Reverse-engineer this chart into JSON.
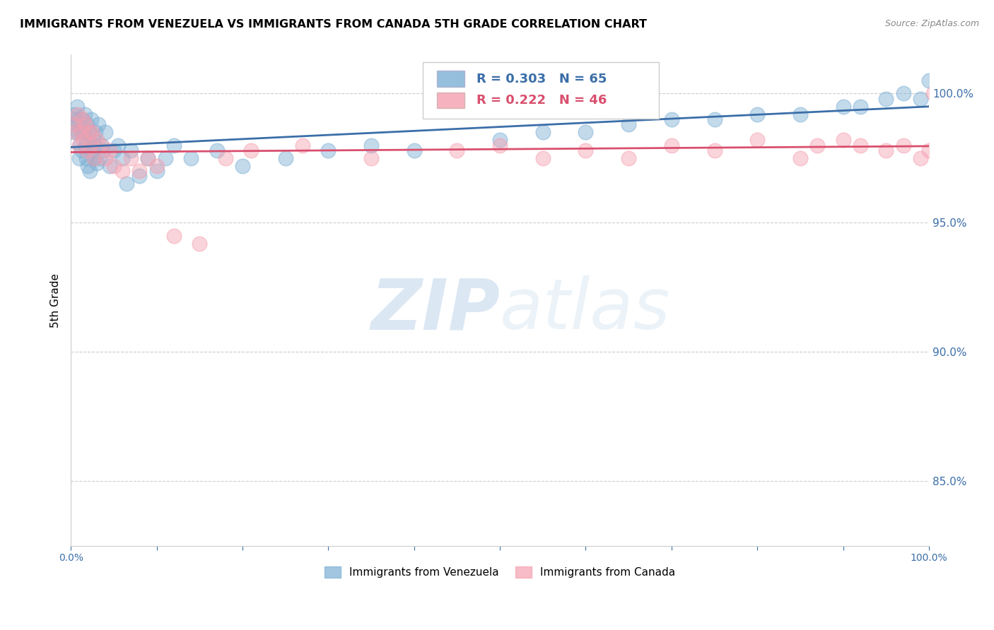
{
  "title": "IMMIGRANTS FROM VENEZUELA VS IMMIGRANTS FROM CANADA 5TH GRADE CORRELATION CHART",
  "source": "Source: ZipAtlas.com",
  "ylabel": "5th Grade",
  "legend_label_blue": "Immigrants from Venezuela",
  "legend_label_pink": "Immigrants from Canada",
  "R_blue": 0.303,
  "N_blue": 65,
  "R_pink": 0.222,
  "N_pink": 46,
  "blue_color": "#7BAFD4",
  "pink_color": "#F4A0B0",
  "blue_line_color": "#3B6EA8",
  "pink_line_color": "#D94F6E",
  "xlim": [
    0.0,
    100.0
  ],
  "ylim": [
    82.5,
    101.5
  ],
  "yticks": [
    85.0,
    90.0,
    95.0,
    100.0
  ],
  "xticks": [
    0.0,
    10.0,
    20.0,
    30.0,
    40.0,
    50.0,
    60.0,
    70.0,
    80.0,
    90.0,
    100.0
  ],
  "watermark_zip": "ZIP",
  "watermark_atlas": "atlas",
  "venezuela_x": [
    0.3,
    0.4,
    0.5,
    0.6,
    0.7,
    0.8,
    0.9,
    1.0,
    1.1,
    1.2,
    1.3,
    1.4,
    1.5,
    1.6,
    1.7,
    1.8,
    1.9,
    2.0,
    2.1,
    2.2,
    2.3,
    2.4,
    2.5,
    2.6,
    2.7,
    2.8,
    2.9,
    3.0,
    3.2,
    3.4,
    3.6,
    3.8,
    4.0,
    4.5,
    5.0,
    5.5,
    6.0,
    6.5,
    7.0,
    8.0,
    9.0,
    10.0,
    11.0,
    12.0,
    14.0,
    17.0,
    20.0,
    25.0,
    30.0,
    35.0,
    40.0,
    50.0,
    55.0,
    60.0,
    65.0,
    70.0,
    75.0,
    80.0,
    85.0,
    90.0,
    92.0,
    95.0,
    97.0,
    99.0,
    100.0
  ],
  "venezuela_y": [
    98.5,
    99.2,
    99.0,
    98.8,
    99.5,
    98.5,
    99.0,
    97.5,
    98.0,
    98.5,
    97.8,
    99.0,
    98.5,
    99.2,
    98.0,
    97.5,
    98.8,
    97.2,
    98.5,
    97.0,
    98.0,
    99.0,
    97.8,
    98.2,
    97.5,
    98.0,
    98.5,
    97.3,
    98.8,
    97.5,
    98.0,
    97.8,
    98.5,
    97.2,
    97.8,
    98.0,
    97.5,
    96.5,
    97.8,
    96.8,
    97.5,
    97.0,
    97.5,
    98.0,
    97.5,
    97.8,
    97.2,
    97.5,
    97.8,
    98.0,
    97.8,
    98.2,
    98.5,
    98.5,
    98.8,
    99.0,
    99.0,
    99.2,
    99.2,
    99.5,
    99.5,
    99.8,
    100.0,
    99.8,
    100.5
  ],
  "canada_x": [
    0.4,
    0.6,
    0.8,
    1.0,
    1.2,
    1.4,
    1.5,
    1.7,
    1.9,
    2.1,
    2.3,
    2.5,
    2.7,
    3.0,
    3.5,
    4.0,
    4.5,
    5.0,
    6.0,
    7.0,
    8.0,
    9.0,
    10.0,
    12.0,
    15.0,
    18.0,
    21.0,
    27.0,
    35.0,
    45.0,
    50.0,
    55.0,
    60.0,
    65.0,
    70.0,
    75.0,
    80.0,
    85.0,
    87.0,
    90.0,
    92.0,
    95.0,
    97.0,
    99.0,
    100.0,
    100.5
  ],
  "canada_y": [
    98.8,
    98.5,
    99.2,
    98.0,
    98.5,
    99.0,
    98.2,
    98.8,
    97.8,
    98.5,
    98.0,
    98.5,
    97.5,
    98.2,
    98.0,
    97.5,
    97.8,
    97.2,
    97.0,
    97.5,
    97.0,
    97.5,
    97.2,
    94.5,
    94.2,
    97.5,
    97.8,
    98.0,
    97.5,
    97.8,
    98.0,
    97.5,
    97.8,
    97.5,
    98.0,
    97.8,
    98.2,
    97.5,
    98.0,
    98.2,
    98.0,
    97.8,
    98.0,
    97.5,
    97.8,
    100.0
  ]
}
